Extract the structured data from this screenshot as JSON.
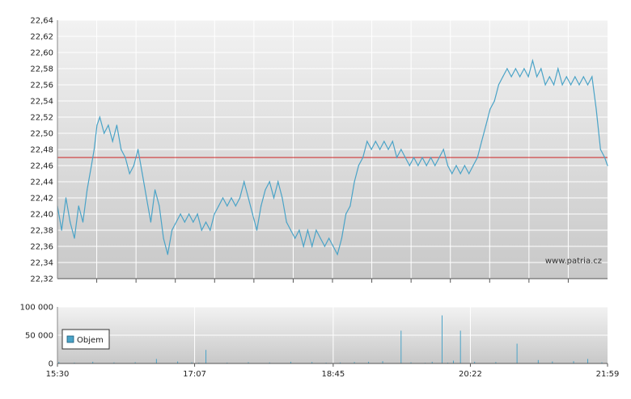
{
  "watermark": "www.patria.cz",
  "legend": {
    "label": "Objem",
    "color": "#4aa3c7"
  },
  "colors": {
    "price_line": "#4aa3c7",
    "reference_line": "#cc2222",
    "volume_bar": "#4aa3c7",
    "grid": "#ffffff",
    "axis": "#555555"
  },
  "chart_data": [
    {
      "type": "line",
      "x_tick_labels": [
        "15:30",
        "17:07",
        "18:45",
        "20:22",
        "21:59"
      ],
      "x_range": [
        "15:30",
        "21:59"
      ],
      "y_tick_labels": [
        "22,32",
        "22,34",
        "22,36",
        "22,38",
        "22,40",
        "22,42",
        "22,44",
        "22,46",
        "22,48",
        "22,50",
        "22,52",
        "22,54",
        "22,56",
        "22,58",
        "22,60",
        "22,62",
        "22,64"
      ],
      "ylim": [
        22.32,
        22.64
      ],
      "reference_line": 22.47,
      "grid": true,
      "series": [
        {
          "points": [
            [
              "15:30",
              22.41
            ],
            [
              "15:33",
              22.38
            ],
            [
              "15:36",
              22.42
            ],
            [
              "15:39",
              22.39
            ],
            [
              "15:42",
              22.37
            ],
            [
              "15:45",
              22.41
            ],
            [
              "15:48",
              22.39
            ],
            [
              "15:51",
              22.43
            ],
            [
              "15:54",
              22.46
            ],
            [
              "15:56",
              22.48
            ],
            [
              "15:58",
              22.51
            ],
            [
              "16:00",
              22.52
            ],
            [
              "16:03",
              22.5
            ],
            [
              "16:06",
              22.51
            ],
            [
              "16:09",
              22.49
            ],
            [
              "16:12",
              22.51
            ],
            [
              "16:15",
              22.48
            ],
            [
              "16:18",
              22.47
            ],
            [
              "16:21",
              22.45
            ],
            [
              "16:24",
              22.46
            ],
            [
              "16:27",
              22.48
            ],
            [
              "16:30",
              22.45
            ],
            [
              "16:33",
              22.42
            ],
            [
              "16:36",
              22.39
            ],
            [
              "16:39",
              22.43
            ],
            [
              "16:42",
              22.41
            ],
            [
              "16:45",
              22.37
            ],
            [
              "16:48",
              22.35
            ],
            [
              "16:51",
              22.38
            ],
            [
              "16:54",
              22.39
            ],
            [
              "16:57",
              22.4
            ],
            [
              "17:00",
              22.39
            ],
            [
              "17:03",
              22.4
            ],
            [
              "17:06",
              22.39
            ],
            [
              "17:09",
              22.4
            ],
            [
              "17:12",
              22.38
            ],
            [
              "17:15",
              22.39
            ],
            [
              "17:18",
              22.38
            ],
            [
              "17:21",
              22.4
            ],
            [
              "17:24",
              22.41
            ],
            [
              "17:27",
              22.42
            ],
            [
              "17:30",
              22.41
            ],
            [
              "17:33",
              22.42
            ],
            [
              "17:36",
              22.41
            ],
            [
              "17:39",
              22.42
            ],
            [
              "17:42",
              22.44
            ],
            [
              "17:45",
              22.42
            ],
            [
              "17:48",
              22.4
            ],
            [
              "17:51",
              22.38
            ],
            [
              "17:54",
              22.41
            ],
            [
              "17:57",
              22.43
            ],
            [
              "18:00",
              22.44
            ],
            [
              "18:03",
              22.42
            ],
            [
              "18:06",
              22.44
            ],
            [
              "18:09",
              22.42
            ],
            [
              "18:12",
              22.39
            ],
            [
              "18:15",
              22.38
            ],
            [
              "18:18",
              22.37
            ],
            [
              "18:21",
              22.38
            ],
            [
              "18:24",
              22.36
            ],
            [
              "18:27",
              22.38
            ],
            [
              "18:30",
              22.36
            ],
            [
              "18:33",
              22.38
            ],
            [
              "18:36",
              22.37
            ],
            [
              "18:39",
              22.36
            ],
            [
              "18:42",
              22.37
            ],
            [
              "18:45",
              22.36
            ],
            [
              "18:48",
              22.35
            ],
            [
              "18:51",
              22.37
            ],
            [
              "18:54",
              22.4
            ],
            [
              "18:57",
              22.41
            ],
            [
              "19:00",
              22.44
            ],
            [
              "19:03",
              22.46
            ],
            [
              "19:06",
              22.47
            ],
            [
              "19:09",
              22.49
            ],
            [
              "19:12",
              22.48
            ],
            [
              "19:15",
              22.49
            ],
            [
              "19:18",
              22.48
            ],
            [
              "19:21",
              22.49
            ],
            [
              "19:24",
              22.48
            ],
            [
              "19:27",
              22.49
            ],
            [
              "19:30",
              22.47
            ],
            [
              "19:33",
              22.48
            ],
            [
              "19:36",
              22.47
            ],
            [
              "19:39",
              22.46
            ],
            [
              "19:42",
              22.47
            ],
            [
              "19:45",
              22.46
            ],
            [
              "19:48",
              22.47
            ],
            [
              "19:51",
              22.46
            ],
            [
              "19:54",
              22.47
            ],
            [
              "19:57",
              22.46
            ],
            [
              "20:00",
              22.47
            ],
            [
              "20:03",
              22.48
            ],
            [
              "20:06",
              22.46
            ],
            [
              "20:09",
              22.45
            ],
            [
              "20:12",
              22.46
            ],
            [
              "20:15",
              22.45
            ],
            [
              "20:18",
              22.46
            ],
            [
              "20:21",
              22.45
            ],
            [
              "20:24",
              22.46
            ],
            [
              "20:27",
              22.47
            ],
            [
              "20:30",
              22.49
            ],
            [
              "20:33",
              22.51
            ],
            [
              "20:36",
              22.53
            ],
            [
              "20:39",
              22.54
            ],
            [
              "20:42",
              22.56
            ],
            [
              "20:45",
              22.57
            ],
            [
              "20:48",
              22.58
            ],
            [
              "20:51",
              22.57
            ],
            [
              "20:54",
              22.58
            ],
            [
              "20:57",
              22.57
            ],
            [
              "21:00",
              22.58
            ],
            [
              "21:03",
              22.57
            ],
            [
              "21:06",
              22.59
            ],
            [
              "21:09",
              22.57
            ],
            [
              "21:12",
              22.58
            ],
            [
              "21:15",
              22.56
            ],
            [
              "21:18",
              22.57
            ],
            [
              "21:21",
              22.56
            ],
            [
              "21:24",
              22.58
            ],
            [
              "21:27",
              22.56
            ],
            [
              "21:30",
              22.57
            ],
            [
              "21:33",
              22.56
            ],
            [
              "21:36",
              22.57
            ],
            [
              "21:39",
              22.56
            ],
            [
              "21:42",
              22.57
            ],
            [
              "21:45",
              22.56
            ],
            [
              "21:48",
              22.57
            ],
            [
              "21:51",
              22.53
            ],
            [
              "21:54",
              22.48
            ],
            [
              "21:57",
              22.47
            ],
            [
              "21:59",
              22.46
            ]
          ]
        }
      ]
    },
    {
      "type": "bar",
      "y_tick_labels": [
        "0",
        "50 000",
        "100 000"
      ],
      "ylim": [
        0,
        100000
      ],
      "grid": true,
      "series": [
        {
          "name": "Objem",
          "points": [
            [
              "15:31",
              2500
            ],
            [
              "15:42",
              1500
            ],
            [
              "15:55",
              3000
            ],
            [
              "16:10",
              1800
            ],
            [
              "16:25",
              2200
            ],
            [
              "16:40",
              8000
            ],
            [
              "16:55",
              3500
            ],
            [
              "17:05",
              2000
            ],
            [
              "17:10",
              1500
            ],
            [
              "17:15",
              24000
            ],
            [
              "17:30",
              1500
            ],
            [
              "17:45",
              2200
            ],
            [
              "18:00",
              1800
            ],
            [
              "18:15",
              3000
            ],
            [
              "18:30",
              2500
            ],
            [
              "18:40",
              1500
            ],
            [
              "18:50",
              1800
            ],
            [
              "19:00",
              2500
            ],
            [
              "19:10",
              3000
            ],
            [
              "19:20",
              4000
            ],
            [
              "19:33",
              58000
            ],
            [
              "19:40",
              2000
            ],
            [
              "19:50",
              1200
            ],
            [
              "19:55",
              3000
            ],
            [
              "20:02",
              85000
            ],
            [
              "20:06",
              1500
            ],
            [
              "20:10",
              5000
            ],
            [
              "20:15",
              58000
            ],
            [
              "20:25",
              3000
            ],
            [
              "20:40",
              2500
            ],
            [
              "20:55",
              35000
            ],
            [
              "21:10",
              6000
            ],
            [
              "21:20",
              3500
            ],
            [
              "21:35",
              4000
            ],
            [
              "21:45",
              8000
            ],
            [
              "21:55",
              2000
            ]
          ]
        }
      ]
    }
  ]
}
